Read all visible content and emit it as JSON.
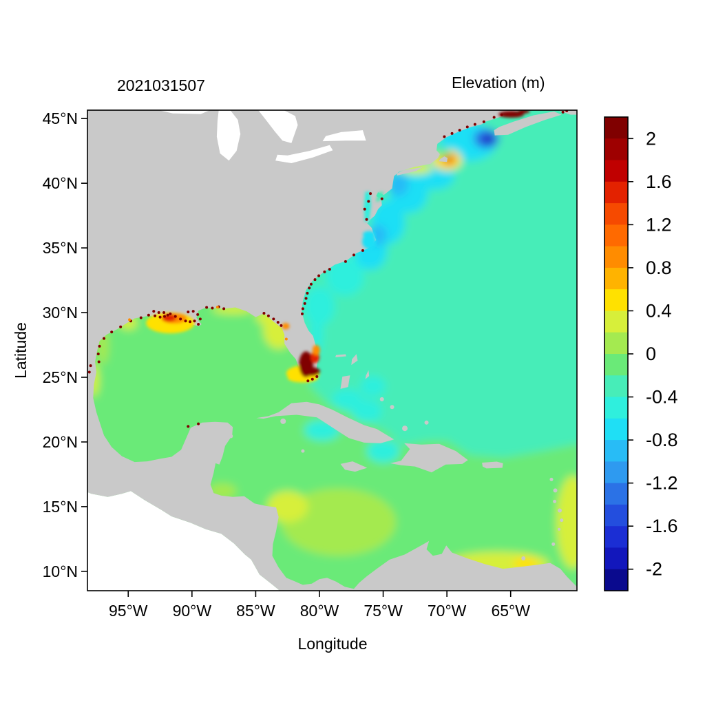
{
  "chart_data": {
    "type": "heatmap",
    "timestamp_label": "2021031507",
    "title": "Elevation (m)",
    "xlabel": "Longitude",
    "ylabel": "Latitude",
    "lon_range": [
      -98.2,
      -59.8
    ],
    "lat_range": [
      8.5,
      45.65
    ],
    "x_ticks": [
      {
        "value": -95,
        "label": "95°W"
      },
      {
        "value": -90,
        "label": "90°W"
      },
      {
        "value": -85,
        "label": "85°W"
      },
      {
        "value": -80,
        "label": "80°W"
      },
      {
        "value": -75,
        "label": "75°W"
      },
      {
        "value": -70,
        "label": "70°W"
      },
      {
        "value": -65,
        "label": "65°W"
      }
    ],
    "y_ticks": [
      {
        "value": 45,
        "label": "45°N"
      },
      {
        "value": 40,
        "label": "40°N"
      },
      {
        "value": 35,
        "label": "35°N"
      },
      {
        "value": 30,
        "label": "30°N"
      },
      {
        "value": 25,
        "label": "25°N"
      },
      {
        "value": 20,
        "label": "20°N"
      },
      {
        "value": 15,
        "label": "15°N"
      },
      {
        "value": 10,
        "label": "10°N"
      }
    ],
    "colorbar": {
      "max_edge": 2.2,
      "min_edge": -2.2,
      "step": 0.2,
      "colors": [
        "#800000",
        "#9e0000",
        "#c00000",
        "#e32200",
        "#f64a00",
        "#ff6a00",
        "#ff8c00",
        "#ffb300",
        "#ffe100",
        "#d7ef3a",
        "#a4ea50",
        "#6aea78",
        "#47edb8",
        "#2fefdd",
        "#1fdff5",
        "#28bcf6",
        "#2e9af0",
        "#2b72e6",
        "#234ede",
        "#1b2ed4",
        "#1217bc",
        "#0a0a8e"
      ],
      "ticks": [
        {
          "value": 2,
          "label": "2"
        },
        {
          "value": 1.6,
          "label": "1.6"
        },
        {
          "value": 1.2,
          "label": "1.2"
        },
        {
          "value": 0.8,
          "label": "0.8"
        },
        {
          "value": 0.4,
          "label": "0.4"
        },
        {
          "value": 0,
          "label": "0"
        },
        {
          "value": -0.4,
          "label": "-0.4"
        },
        {
          "value": -0.8,
          "label": "-0.8"
        },
        {
          "value": -1.2,
          "label": "-1.2"
        },
        {
          "value": -1.6,
          "label": "-1.6"
        },
        {
          "value": -2,
          "label": "-2"
        }
      ]
    },
    "land_color": "#c9c9c9",
    "outside_color": "#ffffff",
    "field_regions": [
      {
        "name": "open-atlantic",
        "shape": "base",
        "value": -0.3
      },
      {
        "name": "gulf-caribbean",
        "shape": "poly",
        "value": -0.05,
        "points": [
          [
            -98.6,
            31
          ],
          [
            -84,
            31
          ],
          [
            -81.5,
            28.5
          ],
          [
            -80.7,
            24.3
          ],
          [
            -79.3,
            22.9
          ],
          [
            -76.5,
            21.7
          ],
          [
            -74.4,
            20.6
          ],
          [
            -73.6,
            19.7
          ],
          [
            -71.5,
            20.1
          ],
          [
            -70,
            20.1
          ],
          [
            -68.2,
            19.0
          ],
          [
            -65.5,
            18.8
          ],
          [
            -62.5,
            19.3
          ],
          [
            -59.5,
            19.9
          ],
          [
            -59.5,
            8.0
          ],
          [
            -98.6,
            8.0
          ]
        ]
      },
      {
        "name": "east-coast-band-1",
        "shape": "ellipse",
        "lon": -80.0,
        "lat": 30.5,
        "rx": 1.2,
        "ry": 1.5,
        "value": -0.5
      },
      {
        "name": "east-coast-band-2",
        "shape": "ellipse",
        "lon": -78.0,
        "lat": 32.8,
        "rx": 1.5,
        "ry": 1.5,
        "value": -0.55
      },
      {
        "name": "east-coast-band-3",
        "shape": "ellipse",
        "lon": -76.0,
        "lat": 34.8,
        "rx": 1.3,
        "ry": 1.5,
        "value": -0.6
      },
      {
        "name": "east-coast-band-4",
        "shape": "ellipse",
        "lon": -74.6,
        "lat": 37.0,
        "rx": 1.3,
        "ry": 1.7,
        "value": -0.65
      },
      {
        "name": "east-coast-band-5",
        "shape": "ellipse",
        "lon": -73.0,
        "lat": 39.3,
        "rx": 1.5,
        "ry": 1.6,
        "value": -0.7
      },
      {
        "name": "east-coast-band-6",
        "shape": "ellipse",
        "lon": -71.0,
        "lat": 40.6,
        "rx": 1.6,
        "ry": 1.1,
        "value": -0.65
      },
      {
        "name": "nj-offshore-low",
        "shape": "ellipse",
        "lon": -73.8,
        "lat": 39.9,
        "rx": 0.8,
        "ry": 0.9,
        "value": -0.85
      },
      {
        "name": "hatteras-low",
        "shape": "ellipse",
        "lon": -75.4,
        "lat": 36.0,
        "rx": 0.7,
        "ry": 0.8,
        "value": -0.8
      },
      {
        "name": "florida-east-band",
        "shape": "ellipse",
        "lon": -80.2,
        "lat": 28.6,
        "rx": 0.5,
        "ry": 1.8,
        "value": -0.5
      },
      {
        "name": "gulf-of-maine",
        "shape": "ellipse",
        "lon": -68.3,
        "lat": 43.2,
        "rx": 2.2,
        "ry": 1.5,
        "value": -0.75
      },
      {
        "name": "fundy-mouth-blue",
        "shape": "ellipse",
        "lon": -66.9,
        "lat": 43.45,
        "rx": 1.0,
        "ry": 0.75,
        "value": -1.3
      },
      {
        "name": "fundy-mouth-core",
        "shape": "ellipse",
        "lon": -66.8,
        "lat": 43.4,
        "rx": 0.45,
        "ry": 0.35,
        "value": -1.9
      },
      {
        "name": "cape-cod-yellow",
        "shape": "ellipse",
        "lon": -70.0,
        "lat": 41.8,
        "rx": 1.15,
        "ry": 0.8,
        "value": 0.45
      },
      {
        "name": "cape-cod-orange",
        "shape": "ellipse",
        "lon": -69.85,
        "lat": 41.85,
        "rx": 0.5,
        "ry": 0.4,
        "value": 1.1
      },
      {
        "name": "cape-cod-core",
        "shape": "ellipse",
        "lon": -69.8,
        "lat": 41.9,
        "rx": 0.22,
        "ry": 0.18,
        "value": 1.7
      },
      {
        "name": "li-sound-yellowgreen",
        "shape": "ellipse",
        "lon": -72.4,
        "lat": 41.15,
        "rx": 1.3,
        "ry": 0.45,
        "value": 0.25
      },
      {
        "name": "mass-bay-green",
        "shape": "ellipse",
        "lon": -70.3,
        "lat": 42.3,
        "rx": 0.5,
        "ry": 0.35,
        "value": 0.0
      },
      {
        "name": "bahamas-cyan-1",
        "shape": "ellipse",
        "lon": -77.8,
        "lat": 23.3,
        "rx": 1.2,
        "ry": 0.8,
        "value": -0.5
      },
      {
        "name": "bahamas-cyan-2",
        "shape": "ellipse",
        "lon": -76.3,
        "lat": 22.4,
        "rx": 1.2,
        "ry": 0.9,
        "value": -0.55
      },
      {
        "name": "exuma-cyan",
        "shape": "ellipse",
        "lon": -75.8,
        "lat": 24.3,
        "rx": 1.0,
        "ry": 0.8,
        "value": -0.5
      },
      {
        "name": "south-cuba-teal-1",
        "shape": "ellipse",
        "lon": -79.8,
        "lat": 20.9,
        "rx": 1.4,
        "ry": 0.8,
        "value": -0.45
      },
      {
        "name": "windward-teal",
        "shape": "ellipse",
        "lon": -75.0,
        "lat": 19.3,
        "rx": 1.3,
        "ry": 0.9,
        "value": -0.45
      },
      {
        "name": "west-florida-yellow",
        "shape": "ellipse",
        "lon": -83.2,
        "lat": 28.7,
        "rx": 1.2,
        "ry": 1.5,
        "value": 0.3
      },
      {
        "name": "bigbend-yellow",
        "shape": "ellipse",
        "lon": -84.0,
        "lat": 29.6,
        "rx": 1.0,
        "ry": 0.5,
        "value": 0.4
      },
      {
        "name": "panhandle-yellow",
        "shape": "ellipse",
        "lon": -86.8,
        "lat": 30.25,
        "rx": 1.6,
        "ry": 0.35,
        "value": 0.3
      },
      {
        "name": "galveston-yellow",
        "shape": "ellipse",
        "lon": -95.0,
        "lat": 29.2,
        "rx": 0.7,
        "ry": 0.5,
        "value": 0.35
      },
      {
        "name": "texas-coast-yellow",
        "shape": "ellipse",
        "lon": -97.0,
        "lat": 27.5,
        "rx": 0.45,
        "ry": 1.5,
        "value": 0.2
      },
      {
        "name": "tamaulipas-yellow",
        "shape": "ellipse",
        "lon": -97.7,
        "lat": 24.8,
        "rx": 0.4,
        "ry": 1.3,
        "value": 0.3
      },
      {
        "name": "caribbean-yellowgreen",
        "shape": "ellipse",
        "lon": -78.5,
        "lat": 13.8,
        "rx": 4.5,
        "ry": 2.6,
        "value": 0.2
      },
      {
        "name": "nicaragua-yellowgreen",
        "shape": "ellipse",
        "lon": -82.5,
        "lat": 15.0,
        "rx": 1.6,
        "ry": 1.2,
        "value": 0.25
      },
      {
        "name": "honduras-gulf-yellow",
        "shape": "ellipse",
        "lon": -87.6,
        "lat": 16.2,
        "rx": 1.1,
        "ry": 0.6,
        "value": 0.2
      },
      {
        "name": "southern-yellow-band",
        "shape": "ellipse",
        "lon": -66.0,
        "lat": 10.6,
        "rx": 4.0,
        "ry": 0.9,
        "value": 0.3
      },
      {
        "name": "venezuela-yellow-spot",
        "shape": "ellipse",
        "lon": -68.9,
        "lat": 10.4,
        "rx": 0.6,
        "ry": 0.4,
        "value": 0.8
      },
      {
        "name": "trinidad-yellow",
        "shape": "ellipse",
        "lon": -63.8,
        "lat": 10.6,
        "rx": 1.0,
        "ry": 0.5,
        "value": 0.5
      },
      {
        "name": "east-edge-yellowgreen",
        "shape": "ellipse",
        "lon": -60.1,
        "lat": 13.8,
        "rx": 1.3,
        "ry": 3.6,
        "value": 0.4
      }
    ],
    "overlay_regions": [
      {
        "name": "florida-keys-yellow",
        "shape": "ellipse",
        "lon": -81.3,
        "lat": 24.95,
        "rx": 1.2,
        "ry": 0.35,
        "value": 0.45
      },
      {
        "name": "everglades-yellow",
        "shape": "ellipse",
        "lon": -81.3,
        "lat": 25.3,
        "rx": 1.3,
        "ry": 0.6,
        "value": 0.5
      },
      {
        "name": "everglades-darkred",
        "shape": "ellipse",
        "lon": -81.05,
        "lat": 26.0,
        "rx": 0.55,
        "ry": 1.0,
        "value": 2.2
      },
      {
        "name": "everglades-darkred-2",
        "shape": "ellipse",
        "lon": -80.7,
        "lat": 25.45,
        "rx": 0.75,
        "ry": 0.35,
        "value": 2.2
      },
      {
        "name": "se-florida-red",
        "shape": "ellipse",
        "lon": -80.35,
        "lat": 26.55,
        "rx": 0.35,
        "ry": 0.45,
        "value": 1.6
      },
      {
        "name": "se-florida-orange",
        "shape": "ellipse",
        "lon": -80.25,
        "lat": 27.1,
        "rx": 0.3,
        "ry": 0.4,
        "value": 1.0
      },
      {
        "name": "tampa-orange",
        "shape": "ellipse",
        "lon": -82.65,
        "lat": 28.95,
        "rx": 0.3,
        "ry": 0.25,
        "value": 0.9
      },
      {
        "name": "louisiana-yellow",
        "shape": "ellipse",
        "lon": -91.7,
        "lat": 29.2,
        "rx": 1.9,
        "ry": 0.8,
        "value": 0.5
      },
      {
        "name": "louisiana-orange",
        "shape": "ellipse",
        "lon": -91.4,
        "lat": 29.55,
        "rx": 1.0,
        "ry": 0.4,
        "value": 1.0
      },
      {
        "name": "louisiana-red",
        "shape": "ellipse",
        "lon": -91.8,
        "lat": 29.6,
        "rx": 0.55,
        "ry": 0.3,
        "value": 1.6
      },
      {
        "name": "chesapeake-strip",
        "shape": "poly",
        "value": -0.4,
        "points": [
          [
            -76.45,
            37.0
          ],
          [
            -76.1,
            37.1
          ],
          [
            -75.95,
            38.3
          ],
          [
            -76.05,
            39.35
          ],
          [
            -76.4,
            39.35
          ],
          [
            -76.5,
            38.3
          ]
        ]
      },
      {
        "name": "delaware-strip",
        "shape": "poly",
        "value": -0.3,
        "points": [
          [
            -75.6,
            38.55
          ],
          [
            -75.25,
            38.65
          ],
          [
            -74.95,
            39.35
          ],
          [
            -75.35,
            39.3
          ]
        ]
      },
      {
        "name": "pamlico-cyan",
        "shape": "ellipse",
        "lon": -76.1,
        "lat": 35.5,
        "rx": 0.55,
        "ry": 0.6,
        "value": -0.7
      },
      {
        "name": "albemarle-cyan",
        "shape": "ellipse",
        "lon": -76.1,
        "lat": 36.05,
        "rx": 0.5,
        "ry": 0.25,
        "value": -0.6
      },
      {
        "name": "fundy-red-streak",
        "shape": "ellipse",
        "lon": -64.95,
        "lat": 45.33,
        "rx": 1.0,
        "ry": 0.26,
        "value": 2.2
      },
      {
        "name": "minas-red",
        "shape": "ellipse",
        "lon": -63.95,
        "lat": 45.56,
        "rx": 0.45,
        "ry": 0.16,
        "value": 2.2
      }
    ],
    "speckles": [
      {
        "value": 2.2,
        "points": [
          [
            -81.35,
            29.9
          ],
          [
            -81.3,
            30.3
          ],
          [
            -81.15,
            30.7
          ],
          [
            -81.05,
            31.1
          ],
          [
            -80.95,
            31.5
          ],
          [
            -80.8,
            31.9
          ],
          [
            -80.65,
            32.2
          ],
          [
            -80.35,
            32.55
          ],
          [
            -80.05,
            32.85
          ],
          [
            -79.6,
            33.15
          ],
          [
            -79.2,
            33.35
          ],
          [
            -77.95,
            33.95
          ],
          [
            -77.3,
            34.45
          ],
          [
            -76.6,
            34.8
          ],
          [
            -76.3,
            37.2
          ],
          [
            -76.45,
            38.0
          ],
          [
            -76.15,
            38.6
          ],
          [
            -76.0,
            39.2
          ],
          [
            -75.1,
            38.8
          ],
          [
            -70.2,
            43.6
          ],
          [
            -69.6,
            43.85
          ],
          [
            -69.0,
            44.1
          ],
          [
            -68.4,
            44.35
          ],
          [
            -67.8,
            44.55
          ],
          [
            -67.1,
            44.75
          ],
          [
            -66.3,
            45.1
          ],
          [
            -65.7,
            45.3
          ],
          [
            -60.9,
            45.5
          ],
          [
            -60.6,
            45.6
          ],
          [
            -97.3,
            26.2
          ],
          [
            -97.35,
            26.8
          ],
          [
            -97.25,
            27.4
          ],
          [
            -96.9,
            28.0
          ],
          [
            -96.3,
            28.5
          ],
          [
            -95.6,
            28.9
          ],
          [
            -94.8,
            29.35
          ],
          [
            -94.0,
            29.6
          ],
          [
            -93.4,
            29.8
          ],
          [
            -92.9,
            29.75
          ],
          [
            -92.5,
            29.65
          ],
          [
            -92.15,
            29.7
          ],
          [
            -91.9,
            29.8
          ],
          [
            -92.2,
            30.0
          ],
          [
            -91.7,
            29.9
          ],
          [
            -91.3,
            29.7
          ],
          [
            -90.9,
            29.5
          ],
          [
            -90.5,
            29.35
          ],
          [
            -90.15,
            29.3
          ],
          [
            -89.8,
            29.35
          ],
          [
            -89.5,
            29.1
          ],
          [
            -89.35,
            29.5
          ],
          [
            -89.55,
            29.85
          ],
          [
            -89.9,
            30.1
          ],
          [
            -90.3,
            30.05
          ],
          [
            -92.6,
            30.0
          ],
          [
            -93.0,
            30.1
          ],
          [
            -88.85,
            30.4
          ],
          [
            -88.4,
            30.35
          ],
          [
            -87.9,
            30.45
          ],
          [
            -87.5,
            30.3
          ],
          [
            -84.35,
            29.95
          ],
          [
            -84.0,
            29.75
          ],
          [
            -83.6,
            29.5
          ],
          [
            -83.25,
            29.25
          ],
          [
            -83.0,
            29.0
          ],
          [
            -80.9,
            24.72
          ],
          [
            -80.55,
            24.85
          ],
          [
            -80.2,
            25.05
          ],
          [
            -97.95,
            25.9
          ],
          [
            -98.05,
            25.4
          ],
          [
            -90.3,
            21.2
          ],
          [
            -89.5,
            21.4
          ]
        ]
      },
      {
        "value": 1.0,
        "points": [
          [
            -82.6,
            27.95
          ],
          [
            -88.0,
            30.42
          ],
          [
            -94.9,
            29.45
          ]
        ]
      }
    ]
  }
}
